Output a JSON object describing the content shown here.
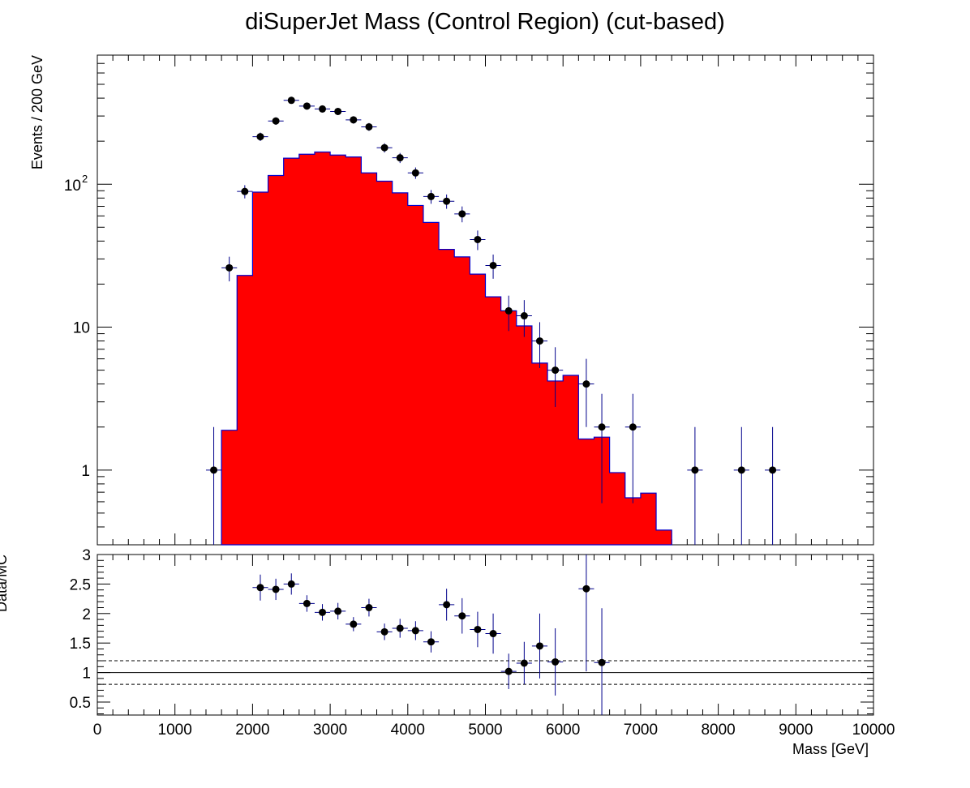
{
  "title": "diSuperJet Mass (Control Region) (cut-based)",
  "colors": {
    "fill": "#ff0000",
    "outline": "#0000cc",
    "marker": "#000000",
    "errorbar": "#00008b"
  },
  "chart_data": [
    {
      "type": "bar",
      "panel": "main",
      "title": "diSuperJet Mass (Control Region) (cut-based)",
      "ylabel": "Events / 200 GeV",
      "xlabel": "",
      "xlim": [
        0,
        10000
      ],
      "ylim": [
        0.3,
        800
      ],
      "yscale": "log",
      "yticks": [
        {
          "value": 1,
          "label": "1"
        },
        {
          "value": 10,
          "label": "10"
        },
        {
          "value": 100,
          "label": "10",
          "exp": "2"
        }
      ],
      "bin_width": 200,
      "mc_histogram": {
        "edges": [
          1600,
          1800,
          2000,
          2200,
          2400,
          2600,
          2800,
          3000,
          3200,
          3400,
          3600,
          3800,
          4000,
          4200,
          4400,
          4600,
          4800,
          5000,
          5200,
          5400,
          5600,
          5800,
          6000,
          6200,
          6400,
          6600,
          6800,
          7000,
          7200,
          7400
        ],
        "values": [
          1.9,
          23,
          88,
          115,
          152,
          162,
          168,
          160,
          155,
          120,
          105,
          87,
          71,
          54,
          35,
          31,
          23.5,
          16.3,
          13,
          10.2,
          5.6,
          4.2,
          4.6,
          1.65,
          1.7,
          0.96,
          0.64,
          0.69,
          0.38
        ]
      },
      "data_points": {
        "x": [
          1500,
          1700,
          1900,
          2100,
          2300,
          2500,
          2700,
          2900,
          3100,
          3300,
          3500,
          3700,
          3900,
          4100,
          4300,
          4500,
          4700,
          4900,
          5100,
          5300,
          5500,
          5700,
          5900,
          6300,
          6500,
          6900,
          7700,
          8300,
          8700
        ],
        "y": [
          1,
          26,
          89,
          215,
          277,
          386,
          352,
          336,
          323,
          282,
          252,
          180,
          153,
          120,
          82,
          76,
          62,
          41,
          27,
          13,
          12,
          8,
          5,
          4,
          2,
          2,
          1,
          1,
          1
        ]
      }
    },
    {
      "type": "scatter",
      "panel": "ratio",
      "xlabel": "Mass [GeV]",
      "ylabel": "Data/MC",
      "xlim": [
        0,
        10000
      ],
      "ylim": [
        0.28,
        3.0
      ],
      "xticks": [
        0,
        1000,
        2000,
        3000,
        4000,
        5000,
        6000,
        7000,
        8000,
        9000,
        10000
      ],
      "yticks": [
        0.5,
        1,
        1.5,
        2,
        2.5,
        3
      ],
      "reference_lines": {
        "solid": [
          1.0
        ],
        "dashed": [
          0.8,
          1.2
        ]
      },
      "points": {
        "x": [
          2100,
          2300,
          2500,
          2700,
          2900,
          3100,
          3300,
          3500,
          3700,
          3900,
          4100,
          4300,
          4500,
          4700,
          4900,
          5100,
          5300,
          5500,
          5700,
          5900,
          6300,
          6500
        ],
        "y": [
          2.44,
          2.41,
          2.5,
          2.17,
          2.02,
          2.04,
          1.82,
          2.1,
          1.69,
          1.75,
          1.71,
          1.52,
          2.15,
          1.96,
          1.73,
          1.66,
          1.02,
          1.16,
          1.45,
          1.18,
          2.42,
          1.17
        ],
        "yerr": [
          0.22,
          0.18,
          0.18,
          0.14,
          0.14,
          0.14,
          0.12,
          0.15,
          0.14,
          0.16,
          0.16,
          0.18,
          0.27,
          0.3,
          0.3,
          0.34,
          0.3,
          0.36,
          0.55,
          0.57,
          1.4,
          0.92
        ]
      }
    }
  ]
}
